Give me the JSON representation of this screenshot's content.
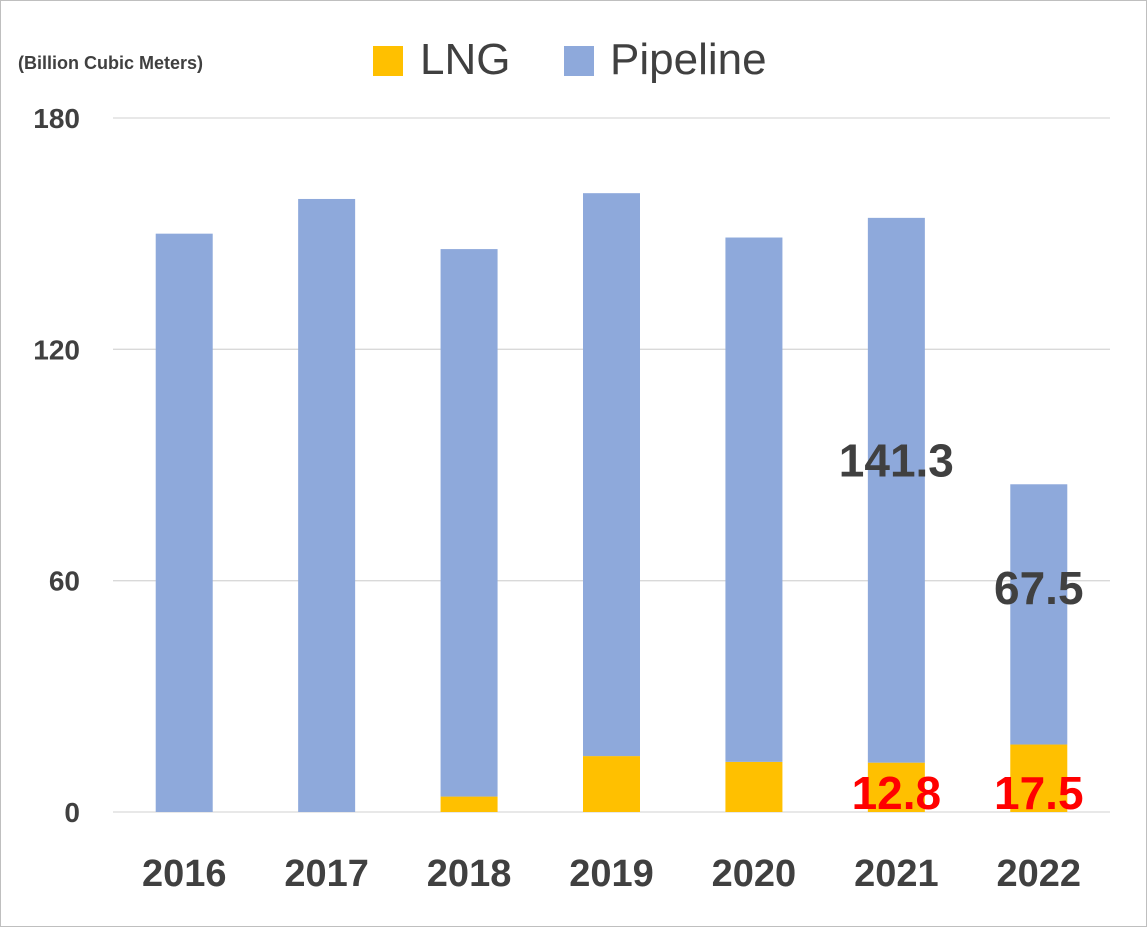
{
  "chart_data": {
    "type": "bar",
    "stacked": true,
    "unit_label": "(Billion Cubic Meters)",
    "categories": [
      "2016",
      "2017",
      "2018",
      "2019",
      "2020",
      "2021",
      "2022"
    ],
    "series": [
      {
        "name": "LNG",
        "color": "#FFC000",
        "values": [
          0,
          0,
          4,
          14.5,
          13,
          12.8,
          17.5
        ]
      },
      {
        "name": "Pipeline",
        "color": "#8EA9DB",
        "values": [
          150,
          159,
          142,
          146,
          136,
          141.3,
          67.5
        ]
      }
    ],
    "data_labels": [
      {
        "series": "Pipeline",
        "category": "2021",
        "text": "141.3",
        "color": "#404040"
      },
      {
        "series": "Pipeline",
        "category": "2022",
        "text": "67.5",
        "color": "#404040"
      },
      {
        "series": "LNG",
        "category": "2021",
        "text": "12.8",
        "color": "#FF0000"
      },
      {
        "series": "LNG",
        "category": "2022",
        "text": "17.5",
        "color": "#FF0000"
      }
    ],
    "y_ticks": [
      "0",
      "60",
      "120",
      "180"
    ],
    "ylim": [
      0,
      180
    ],
    "grid": true,
    "legend_position": "top",
    "gridline_color": "#D9D9D9"
  }
}
